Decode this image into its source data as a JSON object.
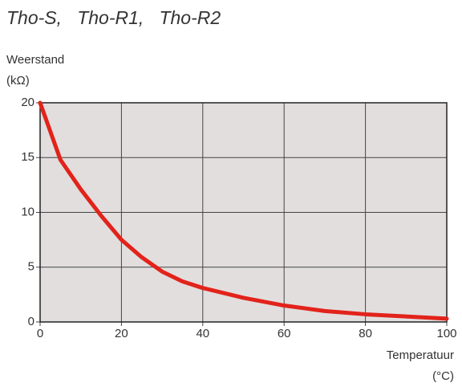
{
  "chart_data": {
    "type": "line",
    "title": "Tho-S,   Tho-R1,   Tho-R2",
    "ylabel": "Weerstand",
    "yunit": "(kΩ)",
    "xlabel": "Temperatuur",
    "xunit": "(°C)",
    "x": [
      0,
      5,
      10,
      15,
      20,
      25,
      30,
      35,
      40,
      50,
      60,
      70,
      80,
      90,
      100
    ],
    "series": [
      {
        "name": "Tho",
        "color": "#e2231a",
        "values": [
          20,
          14.8,
          12.1,
          9.7,
          7.5,
          5.9,
          4.6,
          3.7,
          3.1,
          2.2,
          1.5,
          1.0,
          0.7,
          0.5,
          0.3
        ]
      }
    ],
    "xlim": [
      0,
      100
    ],
    "xticks": [
      0,
      20,
      40,
      60,
      80,
      100
    ],
    "ylim": [
      0,
      20
    ],
    "yticks": [
      0,
      5,
      10,
      15,
      20
    ],
    "grid": true
  }
}
